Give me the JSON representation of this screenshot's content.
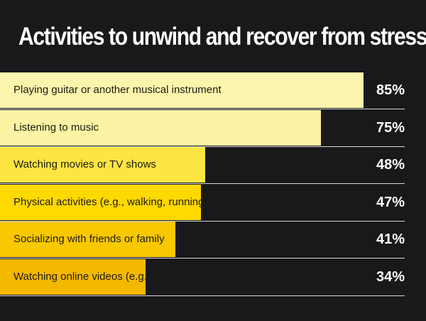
{
  "chart_data": {
    "type": "bar",
    "orientation": "horizontal",
    "title": "Activities to unwind and recover from stress",
    "categories": [
      "Playing guitar or another musical instrument",
      "Listening to music",
      "Watching movies or TV shows",
      "Physical activities (e.g., walking, running, gym)",
      "Socializing with friends or family",
      "Watching online videos (e.g., YouTube, TikTok)"
    ],
    "values": [
      85,
      75,
      48,
      47,
      41,
      34
    ],
    "value_labels": [
      "85%",
      "75%",
      "48%",
      "47%",
      "41%",
      "34%"
    ],
    "xlim": [
      0,
      100
    ],
    "grid": false,
    "legend": "none",
    "bar_colors": [
      "#fdf5ad",
      "#fcf3a4",
      "#fde542",
      "#ffd900",
      "#fac800",
      "#f5b800"
    ],
    "background_color": "#19191b"
  }
}
